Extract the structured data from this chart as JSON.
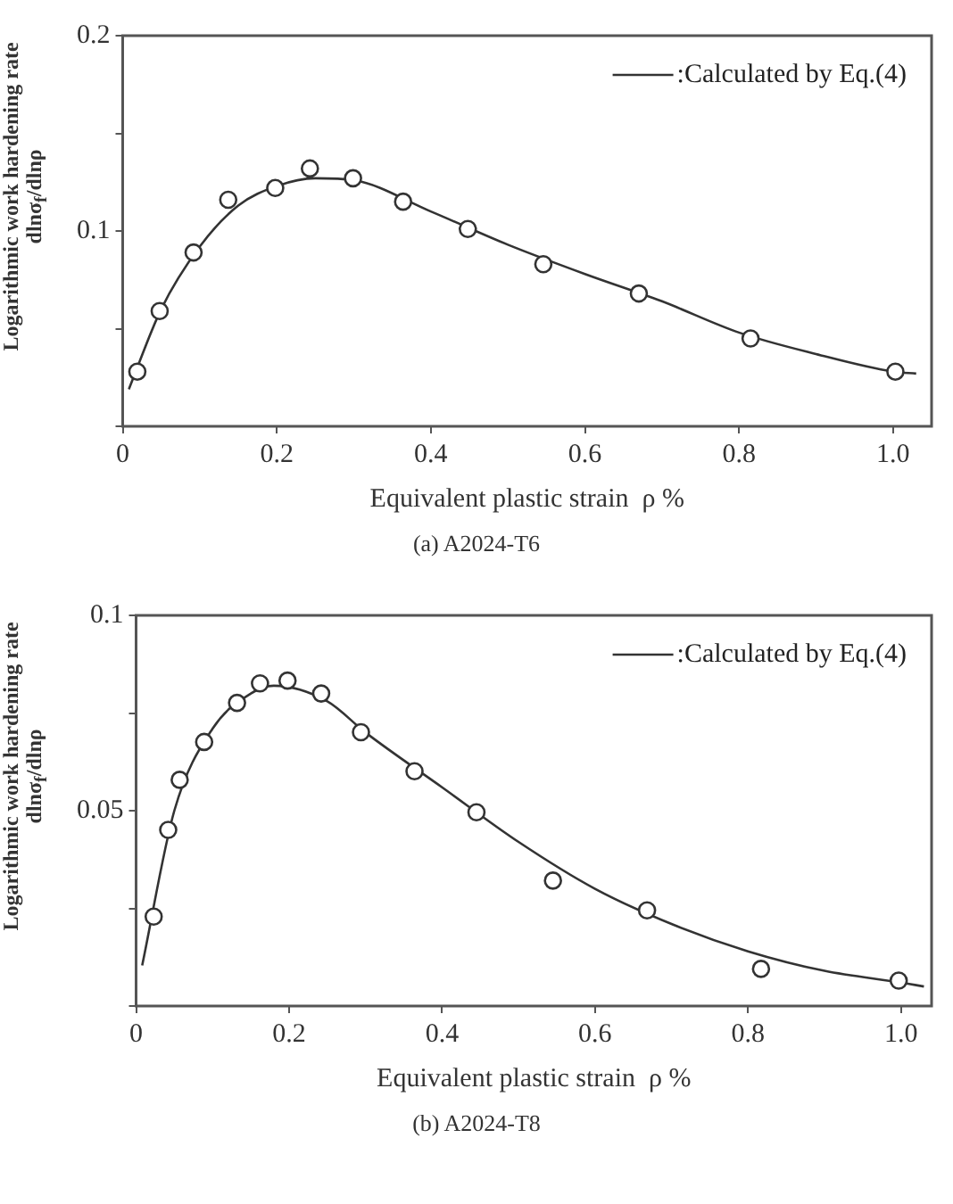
{
  "chart_data": [
    {
      "type": "scatter",
      "title": "(a) A2024-T6",
      "xlabel": "Equivalent plastic strain  ρ %",
      "ylabel": "Logarithmic work hardening rate dlnσ$_{f}$/dlnρ",
      "xlim": [
        0,
        1.05
      ],
      "xticks": [
        0,
        0.2,
        0.4,
        0.6,
        0.8,
        {
          "value": 1,
          "label": "1.0"
        }
      ],
      "ylim": [
        0,
        0.2
      ],
      "yticks": [
        {
          "value": 0,
          "label": null
        },
        {
          "value": 0.05,
          "label": null
        },
        0.1,
        {
          "value": 0.15,
          "label": null
        },
        0.2
      ],
      "grid": false,
      "legend": "top right",
      "marker": "circle",
      "series": [
        {
          "color": "#333333",
          "x": [
            0.019,
            0.048,
            0.092,
            0.137,
            0.198,
            0.243,
            0.299,
            0.364,
            0.448,
            0.546,
            0.67,
            0.815,
            1.003
          ],
          "values": [
            0.028,
            0.059,
            0.089,
            0.116,
            0.122,
            0.132,
            0.127,
            0.115,
            0.101,
            0.083,
            0.068,
            0.045,
            0.028
          ]
        },
        {
          "type": "line",
          "name": ":Calculated by Eq.(4)",
          "color": "#333333",
          "marker": "none",
          "x": [
            0.008,
            0.05,
            0.1,
            0.15,
            0.2,
            0.25,
            0.3,
            0.4,
            0.5,
            0.6,
            0.7,
            0.8,
            0.9,
            1.0,
            1.03
          ],
          "values": [
            0.019,
            0.06,
            0.092,
            0.113,
            0.123,
            0.127,
            0.126,
            0.11,
            0.093,
            0.078,
            0.064,
            0.048,
            0.037,
            0.028,
            0.027
          ]
        }
      ]
    },
    {
      "type": "scatter",
      "title": "(b) A2024-T8",
      "xlabel": "Equivalent plastic strain  ρ %",
      "ylabel": "Logarithmic work hardening rate dlnσ$_{f}$/dlnρ",
      "xlim": [
        0,
        1.04
      ],
      "xticks": [
        0,
        0.2,
        0.4,
        0.6,
        0.8,
        {
          "value": 1,
          "label": "1.0"
        }
      ],
      "ylim": [
        0,
        0.1
      ],
      "yticks": [
        {
          "value": 0,
          "label": null
        },
        {
          "value": 0.025,
          "label": null
        },
        0.05,
        {
          "value": 0.075,
          "label": null
        },
        0.1
      ],
      "grid": false,
      "legend": "top right",
      "marker": "circle",
      "series": [
        {
          "color": "#333333",
          "x": [
            0.023,
            0.042,
            0.057,
            0.089,
            0.132,
            0.162,
            0.198,
            0.242,
            0.294,
            0.364,
            0.445,
            0.545,
            0.668,
            0.817,
            0.997
          ],
          "values": [
            0.0229,
            0.0451,
            0.0579,
            0.0676,
            0.0776,
            0.0826,
            0.0833,
            0.08,
            0.0701,
            0.0601,
            0.0496,
            0.0321,
            0.0245,
            0.0095,
            0.0065
          ]
        },
        {
          "type": "line",
          "name": ":Calculated by Eq.(4)",
          "color": "#333333",
          "marker": "none",
          "x": [
            0.008,
            0.05,
            0.1,
            0.15,
            0.18,
            0.25,
            0.3,
            0.4,
            0.5,
            0.6,
            0.7,
            0.8,
            0.9,
            1.0,
            1.03
          ],
          "values": [
            0.0104,
            0.05,
            0.071,
            0.08,
            0.082,
            0.078,
            0.07,
            0.056,
            0.042,
            0.03,
            0.021,
            0.014,
            0.009,
            0.006,
            0.005
          ]
        }
      ]
    }
  ]
}
